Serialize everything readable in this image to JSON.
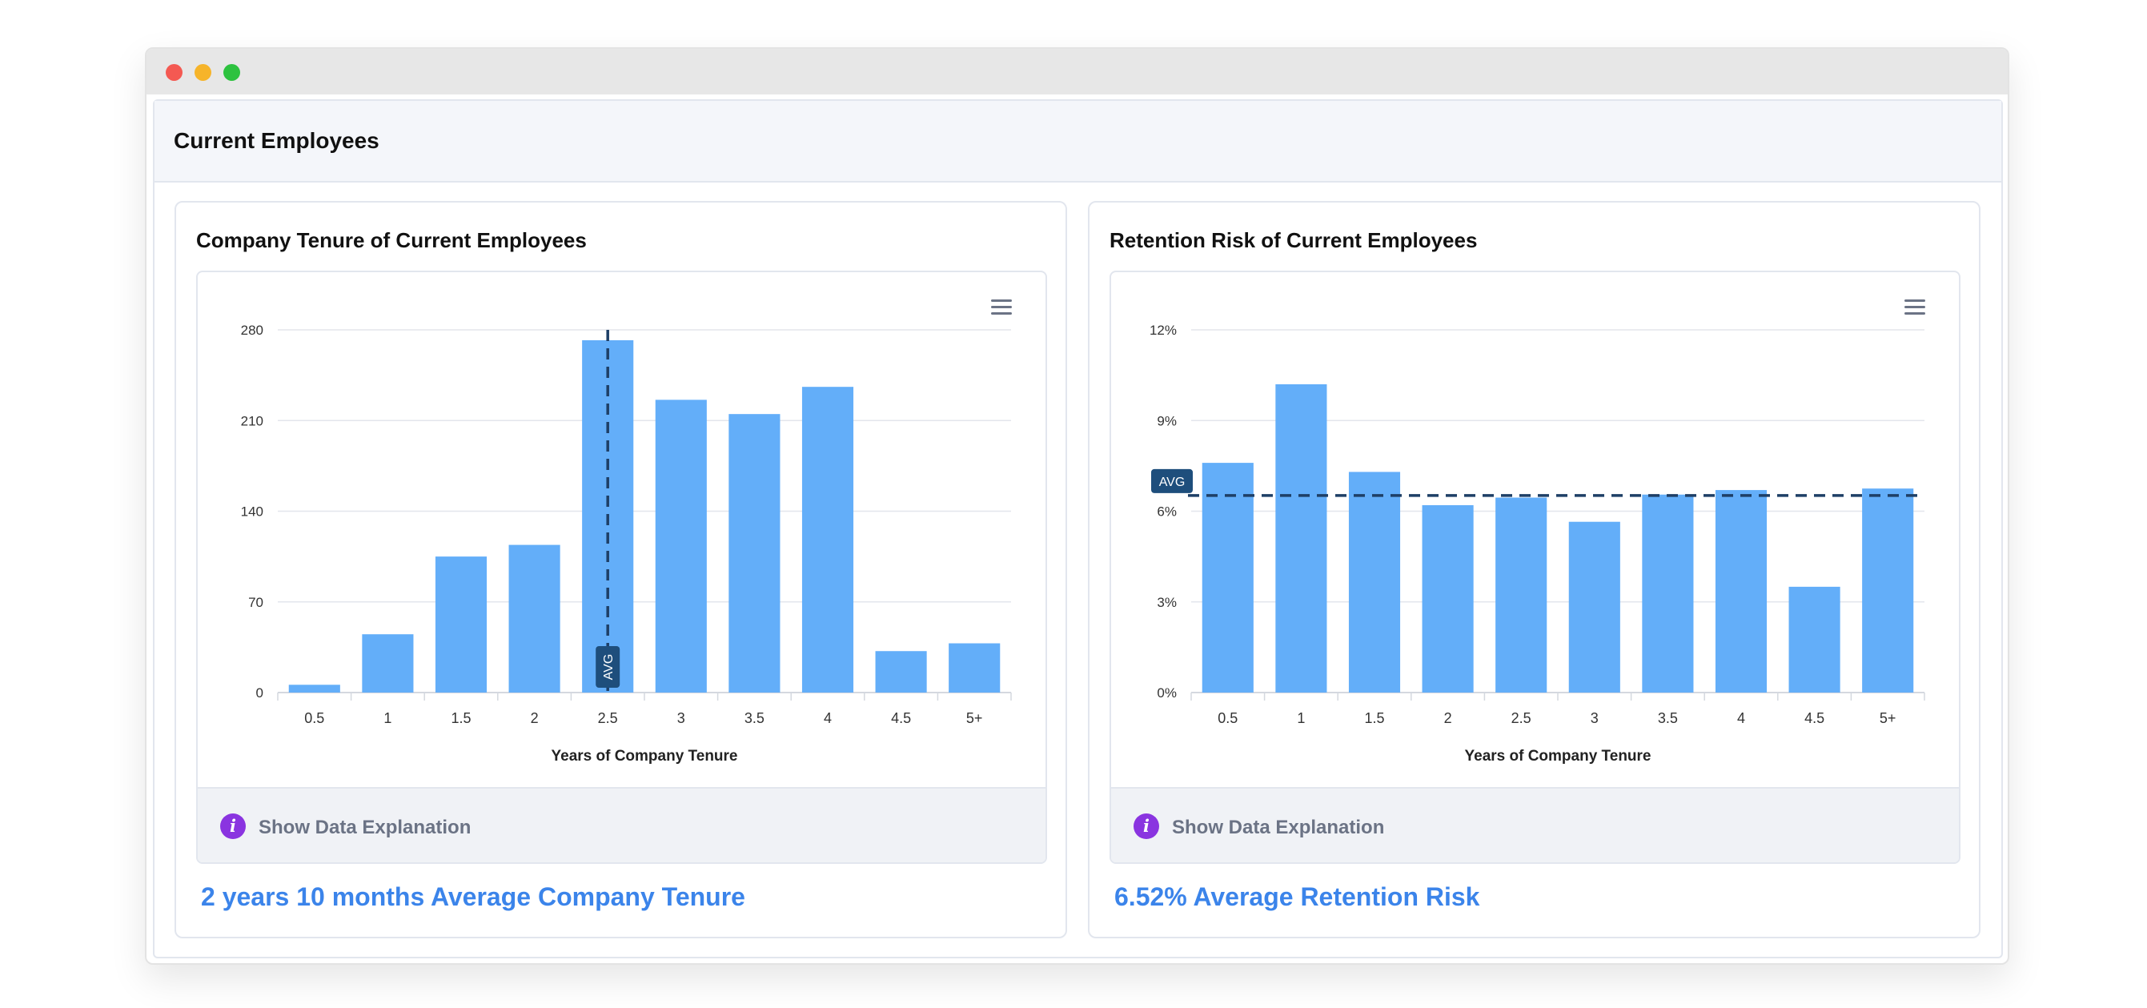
{
  "panel": {
    "title": "Current Employees"
  },
  "colors": {
    "bar": "#63aef9",
    "avg_line": "#1e3f66",
    "avg_badge": "#1e4e7c",
    "summary": "#3b84ea",
    "info_icon": "#8a34e0"
  },
  "icons": {
    "menu": "hamburger-menu-icon",
    "info": "info-icon"
  },
  "cards": [
    {
      "title": "Company Tenure of Current Employees",
      "explain_label": "Show Data Explanation",
      "summary": "2 years 10 months Average Company Tenure"
    },
    {
      "title": "Retention Risk of Current Employees",
      "explain_label": "Show Data Explanation",
      "summary": "6.52% Average Retention Risk"
    }
  ],
  "chart_data": [
    {
      "type": "bar",
      "categories": [
        "0.5",
        "1",
        "1.5",
        "2",
        "2.5",
        "3",
        "3.5",
        "4",
        "4.5",
        "5+"
      ],
      "values": [
        6,
        45,
        105,
        114,
        272,
        226,
        215,
        236,
        32,
        38
      ],
      "xlabel": "Years of Company Tenure",
      "ylabel": "",
      "ylim": [
        0,
        280
      ],
      "yticks": [
        0,
        70,
        140,
        210,
        280
      ],
      "ytick_labels": [
        "0",
        "70",
        "140",
        "210",
        "280"
      ],
      "average": {
        "label": "AVG",
        "orientation": "vertical",
        "value": 2.5
      },
      "grid": true,
      "legend": "none"
    },
    {
      "type": "bar",
      "categories": [
        "0.5",
        "1",
        "1.5",
        "2",
        "2.5",
        "3",
        "3.5",
        "4",
        "4.5",
        "5+"
      ],
      "values": [
        7.6,
        10.2,
        7.3,
        6.2,
        6.45,
        5.65,
        6.55,
        6.7,
        3.5,
        6.75
      ],
      "xlabel": "Years of Company Tenure",
      "ylabel": "",
      "ylim": [
        0,
        12
      ],
      "yticks": [
        0,
        3,
        6,
        9,
        12
      ],
      "ytick_labels": [
        "0%",
        "3%",
        "6%",
        "9%",
        "12%"
      ],
      "average": {
        "label": "AVG",
        "orientation": "horizontal",
        "value": 6.52
      },
      "grid": true,
      "legend": "none"
    }
  ]
}
